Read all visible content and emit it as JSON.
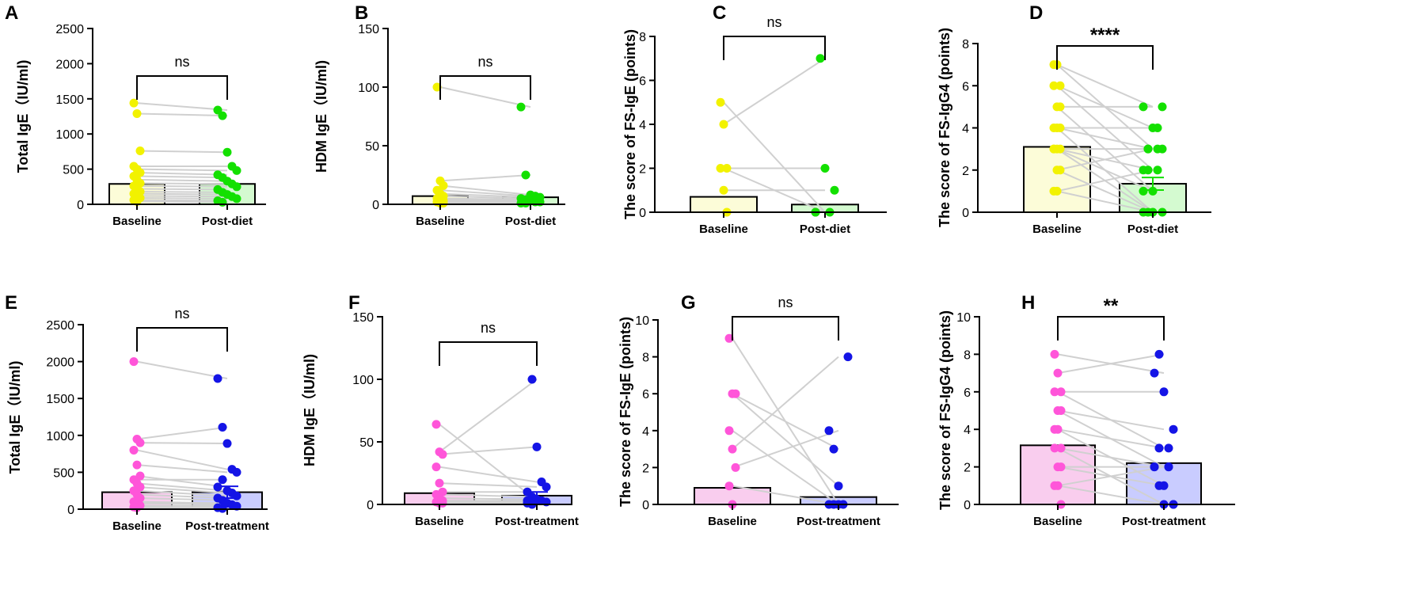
{
  "figure": {
    "colors": {
      "axis": "#000000",
      "line": "#d0d0d0",
      "yellow_point": "#f2f200",
      "yellow_bar": "#fcfcd8",
      "green_point": "#13e000",
      "green_bar": "#d4fad0",
      "pink_point": "#ff55d9",
      "pink_bar": "#f9cdee",
      "blue_point": "#1414e6",
      "blue_bar": "#c9ccff"
    }
  },
  "chart_data": [
    {
      "panel": "A",
      "type": "bar",
      "ylabel": "Total IgE（IU/ml)",
      "categories": [
        "Baseline",
        "Post-diet"
      ],
      "ylim": [
        0,
        2500
      ],
      "yticks": [
        0,
        500,
        1000,
        1500,
        2000,
        2500
      ],
      "bar_values": [
        290,
        290
      ],
      "error_bars": [
        null,
        null
      ],
      "significance": "ns",
      "scheme": "diet",
      "pairs": [
        [
          1440,
          1340
        ],
        [
          1290,
          1260
        ],
        [
          760,
          740
        ],
        [
          540,
          540
        ],
        [
          500,
          480
        ],
        [
          450,
          420
        ],
        [
          400,
          380
        ],
        [
          350,
          330
        ],
        [
          300,
          290
        ],
        [
          260,
          250
        ],
        [
          220,
          210
        ],
        [
          180,
          170
        ],
        [
          150,
          140
        ],
        [
          120,
          110
        ],
        [
          90,
          80
        ],
        [
          60,
          50
        ],
        [
          40,
          30
        ]
      ]
    },
    {
      "panel": "B",
      "type": "bar",
      "ylabel": "HDM IgE（IU/ml)",
      "categories": [
        "Baseline",
        "Post-diet"
      ],
      "ylim": [
        0,
        150
      ],
      "yticks": [
        0,
        50,
        100,
        150
      ],
      "bar_values": [
        7,
        6
      ],
      "error_bars": [
        null,
        null
      ],
      "significance": "ns",
      "scheme": "diet",
      "pairs": [
        [
          100,
          83
        ],
        [
          20,
          25
        ],
        [
          16,
          8
        ],
        [
          12,
          7
        ],
        [
          9,
          6
        ],
        [
          7,
          5
        ],
        [
          5,
          4
        ],
        [
          4,
          3
        ],
        [
          3,
          2
        ],
        [
          2,
          2
        ],
        [
          1,
          1
        ],
        [
          1,
          1
        ]
      ]
    },
    {
      "panel": "C",
      "type": "bar",
      "ylabel": "The score of FS-IgE (points)",
      "categories": [
        "Baseline",
        "Post-diet"
      ],
      "ylim": [
        0,
        8
      ],
      "yticks": [
        0,
        2,
        4,
        6,
        8
      ],
      "bar_values": [
        0.7,
        0.35
      ],
      "error_bars": [
        null,
        null
      ],
      "significance": "ns",
      "scheme": "diet",
      "pairs": [
        [
          5,
          0
        ],
        [
          4,
          7
        ],
        [
          2,
          2
        ],
        [
          2,
          0
        ],
        [
          1,
          1
        ],
        [
          0,
          0
        ]
      ]
    },
    {
      "panel": "D",
      "type": "bar",
      "ylabel": "The score of FS-IgG4 (points)",
      "categories": [
        "Baseline",
        "Post-diet"
      ],
      "ylim": [
        0,
        8
      ],
      "yticks": [
        0,
        2,
        4,
        6,
        8
      ],
      "bar_values": [
        3.1,
        1.35
      ],
      "error_bars": [
        null,
        0.3
      ],
      "significance": "****",
      "scheme": "diet",
      "pairs": [
        [
          7,
          5
        ],
        [
          7,
          3
        ],
        [
          6,
          4
        ],
        [
          6,
          2
        ],
        [
          5,
          5
        ],
        [
          5,
          1
        ],
        [
          4,
          3
        ],
        [
          4,
          0
        ],
        [
          4,
          4
        ],
        [
          3,
          3
        ],
        [
          3,
          0
        ],
        [
          3,
          2
        ],
        [
          3,
          1
        ],
        [
          2,
          3
        ],
        [
          2,
          0
        ],
        [
          1,
          2
        ],
        [
          1,
          0
        ]
      ]
    },
    {
      "panel": "E",
      "type": "bar",
      "ylabel": "Total IgE（IU/ml)",
      "categories": [
        "Baseline",
        "Post-treatment"
      ],
      "ylim": [
        0,
        2500
      ],
      "yticks": [
        0,
        500,
        1000,
        1500,
        2000,
        2500
      ],
      "bar_values": [
        230,
        230
      ],
      "error_bars": [
        null,
        80
      ],
      "significance": "ns",
      "scheme": "treatment",
      "pairs": [
        [
          2000,
          1770
        ],
        [
          950,
          1110
        ],
        [
          900,
          890
        ],
        [
          800,
          540
        ],
        [
          600,
          500
        ],
        [
          450,
          300
        ],
        [
          400,
          400
        ],
        [
          350,
          250
        ],
        [
          300,
          220
        ],
        [
          250,
          180
        ],
        [
          200,
          150
        ],
        [
          150,
          120
        ],
        [
          100,
          80
        ],
        [
          80,
          60
        ],
        [
          50,
          40
        ],
        [
          30,
          20
        ],
        [
          20,
          10
        ]
      ]
    },
    {
      "panel": "F",
      "type": "bar",
      "ylabel": "HDM IgE（IU/ml)",
      "categories": [
        "Baseline",
        "Post-treatment"
      ],
      "ylim": [
        0,
        150
      ],
      "yticks": [
        0,
        50,
        100,
        150
      ],
      "bar_values": [
        9,
        7
      ],
      "error_bars": [
        null,
        3
      ],
      "significance": "ns",
      "scheme": "treatment",
      "pairs": [
        [
          64,
          3
        ],
        [
          42,
          100
        ],
        [
          40,
          46
        ],
        [
          30,
          18
        ],
        [
          17,
          14
        ],
        [
          10,
          10
        ],
        [
          8,
          6
        ],
        [
          5,
          4
        ],
        [
          3,
          3
        ],
        [
          2,
          2
        ],
        [
          1,
          1
        ],
        [
          1,
          0
        ]
      ]
    },
    {
      "panel": "G",
      "type": "bar",
      "ylabel": "The score of FS-IgE (points)",
      "categories": [
        "Baseline",
        "Post-treatment"
      ],
      "ylim": [
        0,
        10
      ],
      "yticks": [
        0,
        2,
        4,
        6,
        8,
        10
      ],
      "bar_values": [
        0.9,
        0.4
      ],
      "error_bars": [
        null,
        null
      ],
      "significance": "ns",
      "scheme": "treatment",
      "pairs": [
        [
          9,
          0
        ],
        [
          6,
          3
        ],
        [
          6,
          1
        ],
        [
          4,
          0
        ],
        [
          3,
          8
        ],
        [
          2,
          4
        ],
        [
          1,
          0
        ],
        [
          0,
          0
        ]
      ]
    },
    {
      "panel": "H",
      "type": "bar",
      "ylabel": "The score of FS-IgG4 (points)",
      "categories": [
        "Baseline",
        "Post-treatment"
      ],
      "ylim": [
        0,
        10
      ],
      "yticks": [
        0,
        2,
        4,
        6,
        8,
        10
      ],
      "bar_values": [
        3.15,
        2.2
      ],
      "error_bars": [
        null,
        null
      ],
      "significance": "**",
      "scheme": "treatment",
      "pairs": [
        [
          8,
          7
        ],
        [
          7,
          8
        ],
        [
          6,
          6
        ],
        [
          6,
          3
        ],
        [
          5,
          4
        ],
        [
          5,
          2
        ],
        [
          4,
          3
        ],
        [
          4,
          1
        ],
        [
          3,
          2
        ],
        [
          3,
          0
        ],
        [
          2,
          2
        ],
        [
          2,
          1
        ],
        [
          1,
          0
        ],
        [
          1,
          2
        ],
        [
          0,
          0
        ]
      ]
    }
  ]
}
